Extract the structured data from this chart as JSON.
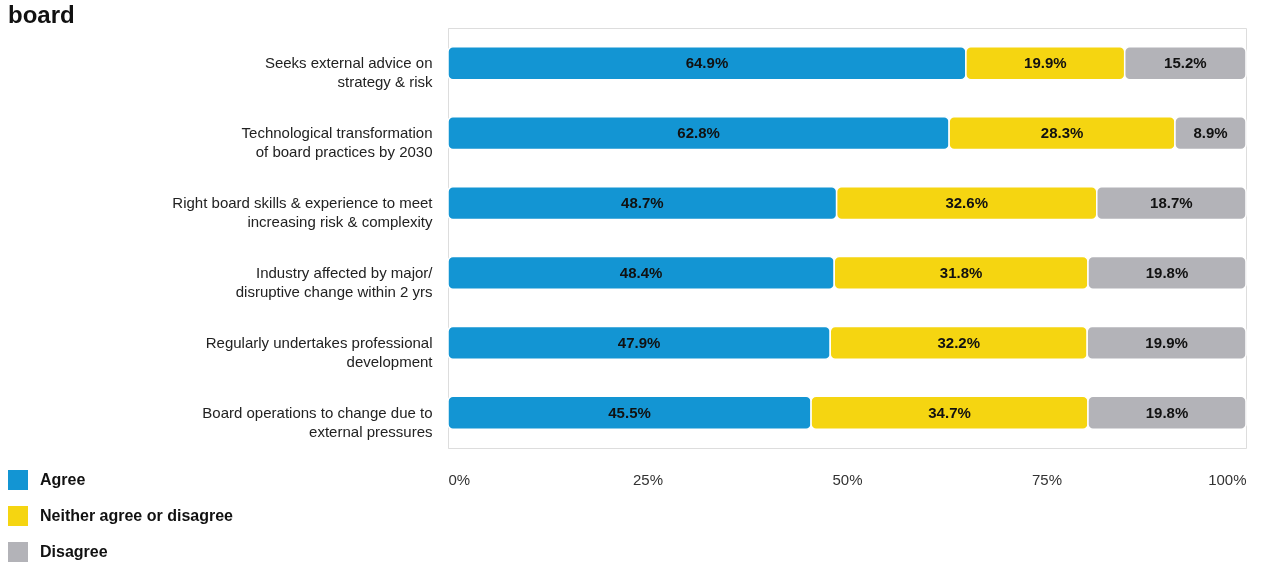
{
  "chart_data": {
    "type": "bar",
    "orientation": "horizontal",
    "stacked": true,
    "title": "board",
    "categories": [
      "Seeks external advice on\nstrategy & risk",
      "Technological transformation\nof board practices by 2030",
      "Right board skills & experience to meet\nincreasing risk & complexity",
      "Industry affected by major/\ndisruptive change within 2 yrs",
      "Regularly undertakes professional\ndevelopment",
      "Board operations to change due to\nexternal pressures"
    ],
    "series": [
      {
        "name": "Agree",
        "color": "#1395d3",
        "values": [
          64.9,
          62.8,
          48.7,
          48.4,
          47.9,
          45.5
        ],
        "value_labels": [
          "64.9%",
          "62.8%",
          "48.7%",
          "48.4%",
          "47.9%",
          "45.5%"
        ]
      },
      {
        "name": "Neither agree or disagree",
        "color": "#f5d511",
        "values": [
          19.9,
          28.3,
          32.6,
          31.8,
          32.2,
          34.7
        ],
        "value_labels": [
          "19.9%",
          "28.3%",
          "32.6%",
          "31.8%",
          "32.2%",
          "34.7%"
        ]
      },
      {
        "name": "Disagree",
        "color": "#b3b3b8",
        "values": [
          15.2,
          8.9,
          18.7,
          19.8,
          19.9,
          19.8
        ],
        "value_labels": [
          "15.2%",
          "8.9%",
          "18.7%",
          "19.8%",
          "19.9%",
          "19.8%"
        ]
      }
    ],
    "xlim": [
      0,
      100
    ],
    "xticks": [
      {
        "value": 0,
        "label": "0%"
      },
      {
        "value": 25,
        "label": "25%"
      },
      {
        "value": 50,
        "label": "50%"
      },
      {
        "value": 75,
        "label": "75%"
      },
      {
        "value": 100,
        "label": "100%"
      }
    ],
    "grid": false,
    "legend": "bottom left"
  }
}
